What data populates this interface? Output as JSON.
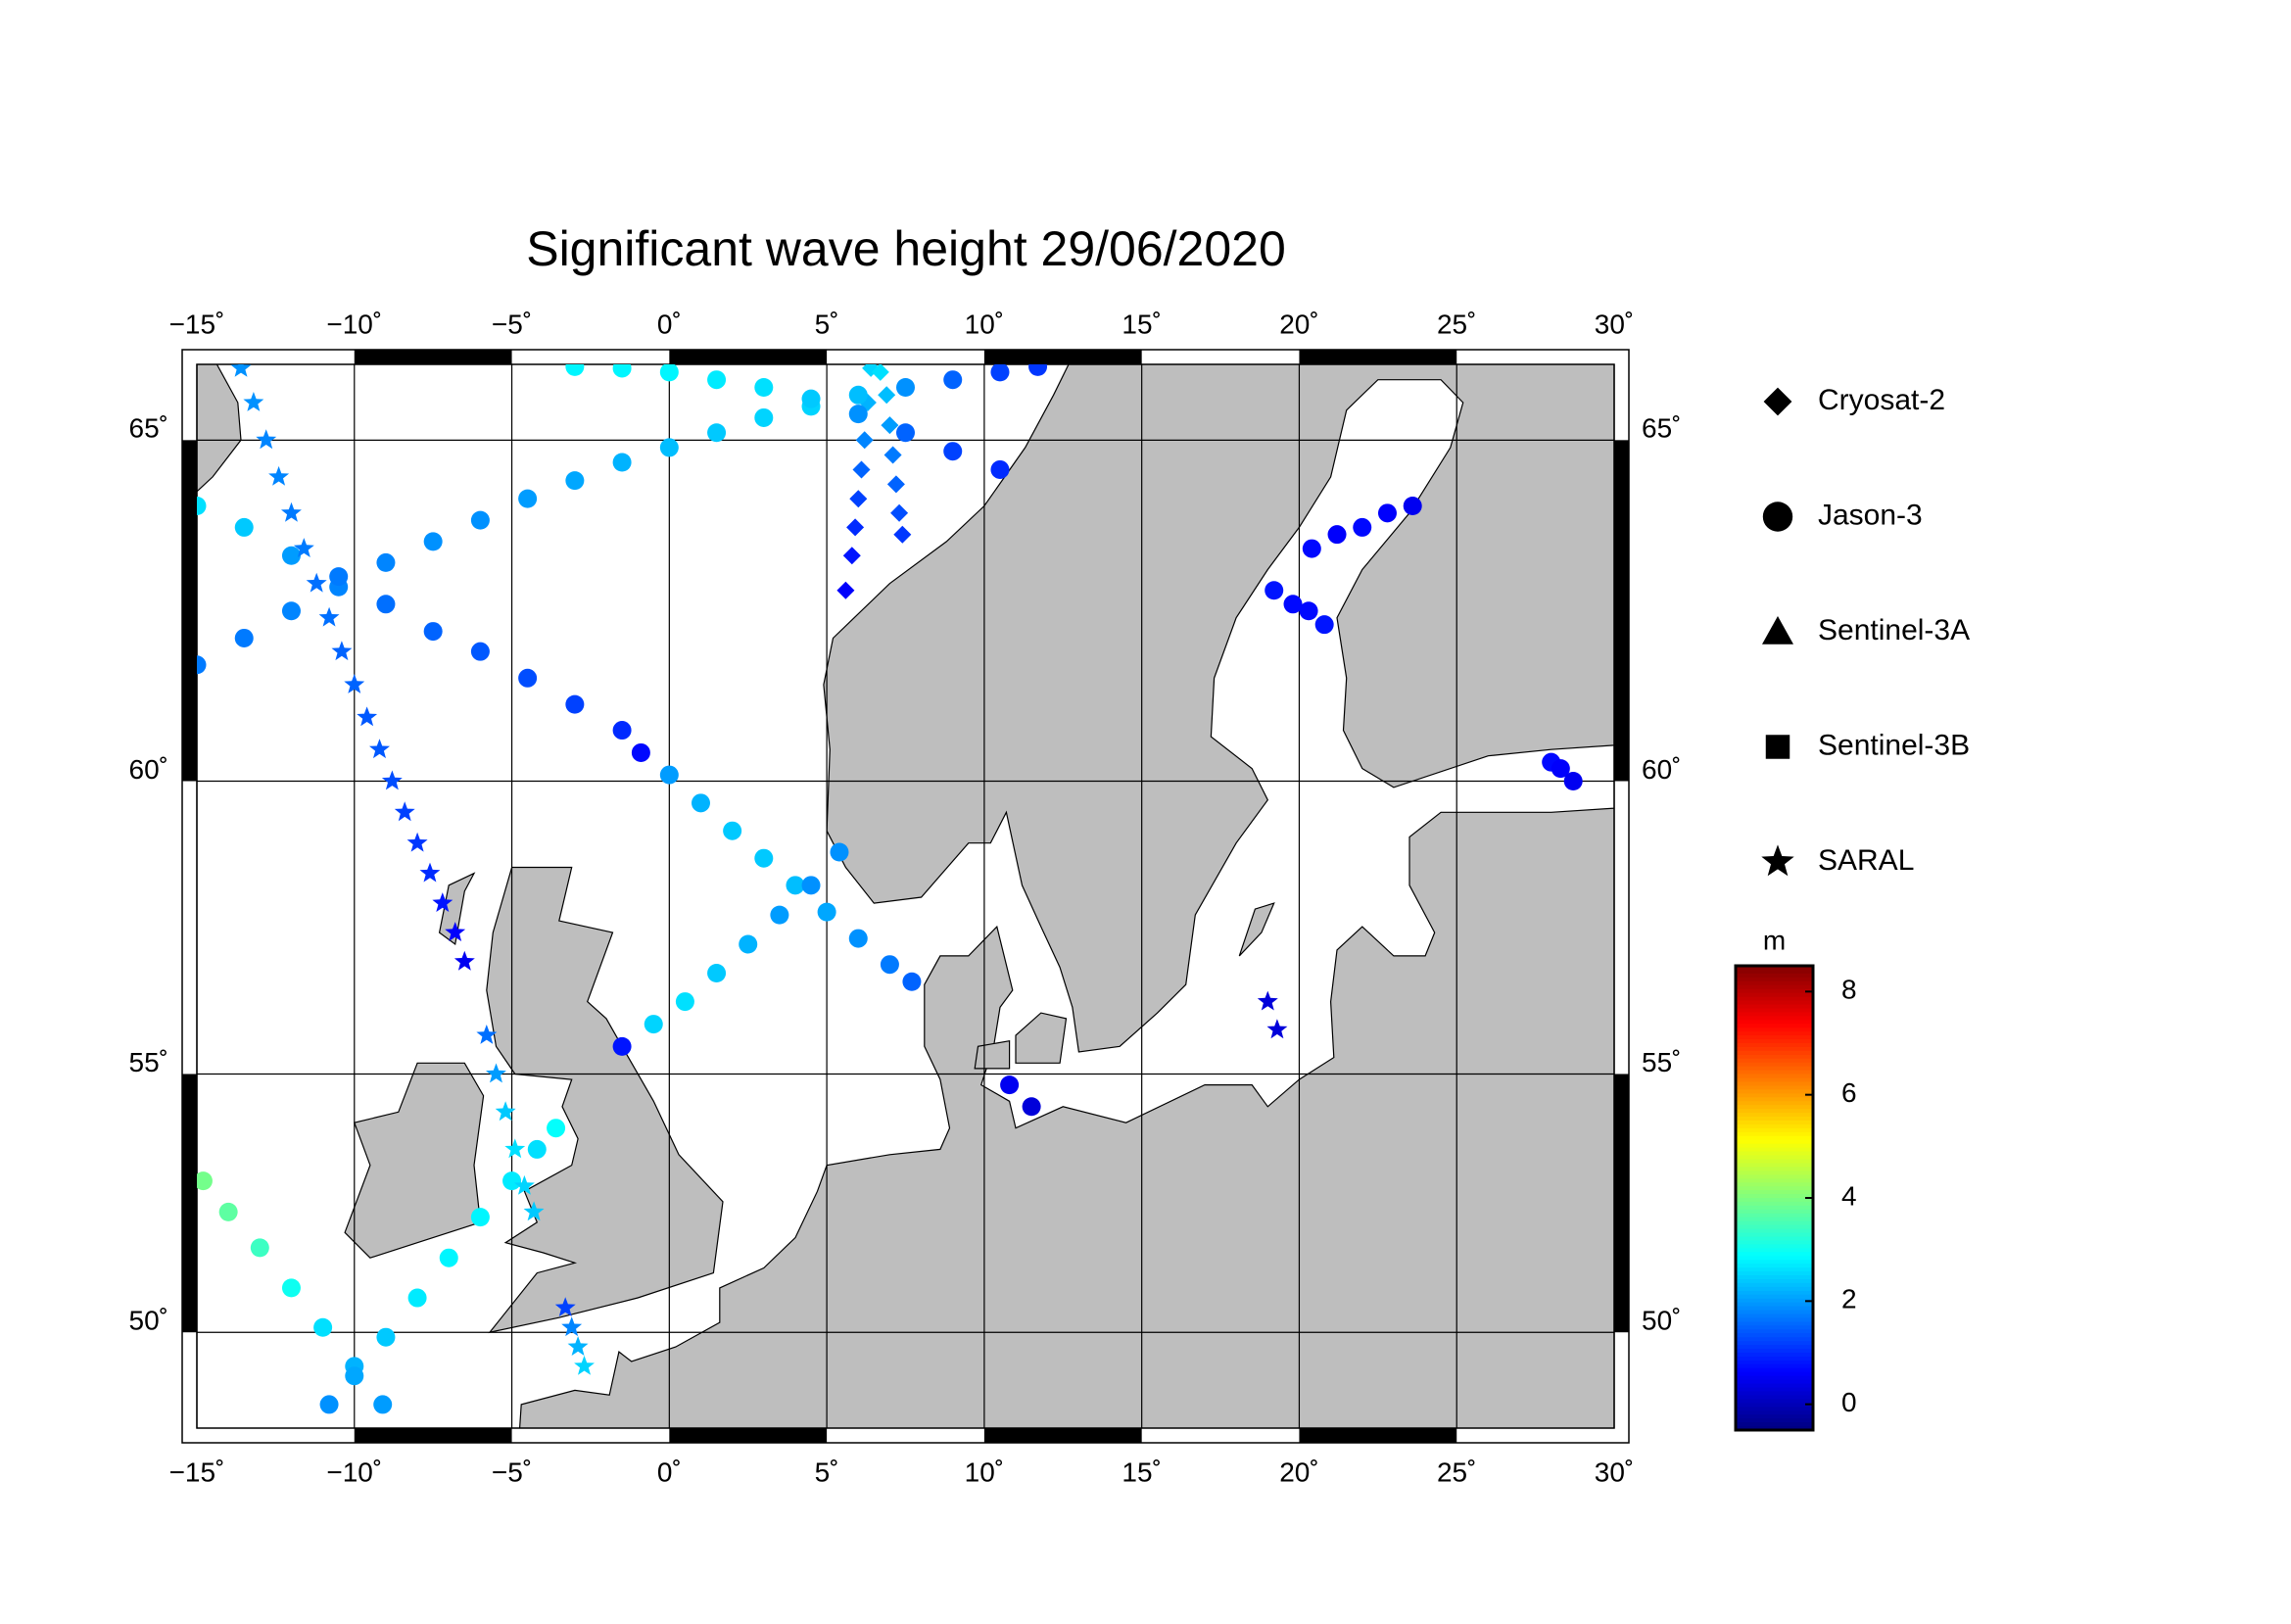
{
  "chart_data": {
    "type": "map-scatter",
    "title": "Significant wave height 29/06/2020",
    "xlim": [
      -15,
      30
    ],
    "ylim": [
      48,
      66
    ],
    "projection": "mercator",
    "grid": true,
    "xticks": [
      {
        "value": -15,
        "label": "−15˚"
      },
      {
        "value": -10,
        "label": "−10˚"
      },
      {
        "value": -5,
        "label": "−5˚"
      },
      {
        "value": 0,
        "label": "0˚"
      },
      {
        "value": 5,
        "label": "5˚"
      },
      {
        "value": 10,
        "label": "10˚"
      },
      {
        "value": 15,
        "label": "15˚"
      },
      {
        "value": 20,
        "label": "20˚"
      },
      {
        "value": 25,
        "label": "25˚"
      },
      {
        "value": 30,
        "label": "30˚"
      }
    ],
    "yticks": [
      {
        "value": 50,
        "label": "50˚"
      },
      {
        "value": 55,
        "label": "55˚"
      },
      {
        "value": 60,
        "label": "60˚"
      },
      {
        "value": 65,
        "label": "65˚"
      }
    ],
    "colorbar": {
      "label": "m",
      "lim": [
        -0.5,
        8.5
      ],
      "ticks": [
        0,
        2,
        4,
        6,
        8
      ],
      "colormap": "jet"
    },
    "series": [
      {
        "name": "Cryosat-2",
        "marker": "diamond",
        "x": [
          6.4,
          6.3,
          6.2,
          6.1,
          6.0,
          5.9,
          5.8,
          5.6,
          6.7,
          6.9,
          7.0,
          7.1,
          7.2,
          7.3,
          7.4
        ],
        "y": [
          65.95,
          65.5,
          65.0,
          64.6,
          64.2,
          63.8,
          63.4,
          62.9,
          65.9,
          65.6,
          65.2,
          64.8,
          64.4,
          64.0,
          63.7
        ],
        "values": [
          2.5,
          2.2,
          1.8,
          1.5,
          1.2,
          1.0,
          0.8,
          0.6,
          2.6,
          2.3,
          2.0,
          1.7,
          1.5,
          1.3,
          1.1
        ]
      },
      {
        "name": "Jason-3",
        "marker": "circle",
        "x": [
          -15,
          -13.5,
          -12,
          -10.5,
          -9,
          -7.5,
          -6,
          -4.5,
          -3,
          -1.5,
          0,
          1.5,
          3,
          4.5,
          6,
          7.5,
          9,
          10.5,
          11.7,
          -15,
          -13.5,
          -12,
          -10.5,
          -9,
          -7.5,
          -6,
          -4.5,
          -3,
          -1.5,
          -0.9,
          0,
          1,
          2,
          3,
          4,
          5,
          6,
          7,
          7.7,
          -1.5,
          -0.5,
          0.5,
          1.5,
          2.5,
          3.5,
          4.5,
          5.4,
          -14.8,
          -14,
          -13,
          -12,
          -11,
          -10,
          -9.1,
          -10.8,
          -10,
          -9,
          -8,
          -7,
          -6,
          -5,
          -4.2,
          -3.6,
          -3,
          -1.5,
          0,
          1.5,
          3,
          4.5,
          6,
          7.5,
          9,
          10.5,
          20.4,
          21.2,
          22,
          22.8,
          23.6,
          19.2,
          19.8,
          20.3,
          20.8,
          10.8,
          11.5,
          28,
          28.3,
          28.7
        ],
        "y": [
          61.8,
          62.2,
          62.6,
          62.95,
          63.3,
          63.6,
          63.9,
          64.2,
          64.45,
          64.7,
          64.9,
          65.1,
          65.3,
          65.45,
          65.6,
          65.7,
          65.8,
          65.9,
          65.97,
          64.1,
          63.8,
          63.4,
          63.1,
          62.7,
          62.3,
          62.0,
          61.6,
          61.2,
          60.8,
          60.45,
          60.1,
          59.65,
          59.2,
          58.75,
          58.3,
          57.85,
          57.4,
          56.95,
          56.65,
          55.5,
          55.9,
          56.3,
          56.8,
          57.3,
          57.8,
          58.3,
          58.85,
          53.0,
          52.4,
          51.7,
          50.9,
          50.1,
          49.3,
          48.5,
          48.5,
          49.1,
          49.9,
          50.7,
          51.5,
          52.3,
          53.0,
          53.6,
          54.0,
          65.97,
          65.95,
          65.9,
          65.8,
          65.7,
          65.55,
          65.35,
          65.1,
          64.85,
          64.6,
          63.5,
          63.7,
          63.8,
          64.0,
          64.1,
          62.9,
          62.7,
          62.6,
          62.4,
          54.8,
          54.4,
          60.3,
          60.2,
          60.0
        ],
        "values": [
          1.7,
          1.7,
          1.8,
          1.8,
          1.8,
          1.9,
          1.9,
          2.0,
          2.1,
          2.2,
          2.3,
          2.4,
          2.5,
          2.5,
          2.3,
          1.9,
          1.5,
          1.2,
          1.1,
          2.6,
          2.4,
          2.0,
          1.7,
          1.6,
          1.5,
          1.4,
          1.3,
          1.2,
          1.0,
          0.7,
          2.0,
          2.2,
          2.4,
          2.4,
          2.3,
          2.1,
          1.9,
          1.7,
          1.5,
          0.8,
          2.5,
          2.6,
          2.4,
          2.2,
          2.0,
          1.9,
          1.9,
          3.9,
          3.7,
          3.4,
          3.0,
          2.6,
          2.2,
          2.0,
          1.9,
          2.1,
          2.4,
          2.7,
          2.8,
          2.8,
          2.7,
          2.6,
          2.9,
          2.8,
          2.8,
          2.8,
          2.7,
          2.6,
          2.4,
          1.9,
          1.5,
          1.2,
          1.0,
          0.7,
          0.6,
          0.7,
          0.6,
          0.5,
          0.8,
          0.7,
          0.7,
          0.8,
          0.5,
          0.3,
          0.7,
          0.6,
          0.5
        ]
      },
      {
        "name": "Sentinel-3A",
        "marker": "triangle",
        "x": [],
        "y": [],
        "values": []
      },
      {
        "name": "Sentinel-3B",
        "marker": "square",
        "x": [],
        "y": [],
        "values": []
      },
      {
        "name": "SARAL",
        "marker": "star",
        "x": [
          -13.6,
          -13.2,
          -12.8,
          -12.4,
          -12,
          -11.6,
          -11.2,
          -10.8,
          -10.4,
          -10,
          -9.6,
          -9.2,
          -8.8,
          -8.4,
          -8,
          -7.6,
          -7.2,
          -6.8,
          -6.5,
          -5.8,
          -5.5,
          -5.2,
          -4.9,
          -4.6,
          -4.3,
          -3.3,
          -3.1,
          -2.9,
          -2.7,
          19,
          19.3
        ],
        "y": [
          65.95,
          65.5,
          65.0,
          64.5,
          64.0,
          63.5,
          63.0,
          62.5,
          62.0,
          61.5,
          61.0,
          60.5,
          60.0,
          59.5,
          59.0,
          58.5,
          58.0,
          57.5,
          57.0,
          55.7,
          55.0,
          54.3,
          53.6,
          52.9,
          52.4,
          50.5,
          50.1,
          49.7,
          49.3,
          56.3,
          55.8
        ],
        "values": [
          1.9,
          1.9,
          1.8,
          1.8,
          1.7,
          1.7,
          1.6,
          1.6,
          1.5,
          1.5,
          1.4,
          1.4,
          1.3,
          1.2,
          1.1,
          1.0,
          0.8,
          0.6,
          0.5,
          1.6,
          2.0,
          2.4,
          2.6,
          2.5,
          2.4,
          1.2,
          1.8,
          2.2,
          2.5,
          0.3,
          0.3
        ]
      }
    ]
  }
}
